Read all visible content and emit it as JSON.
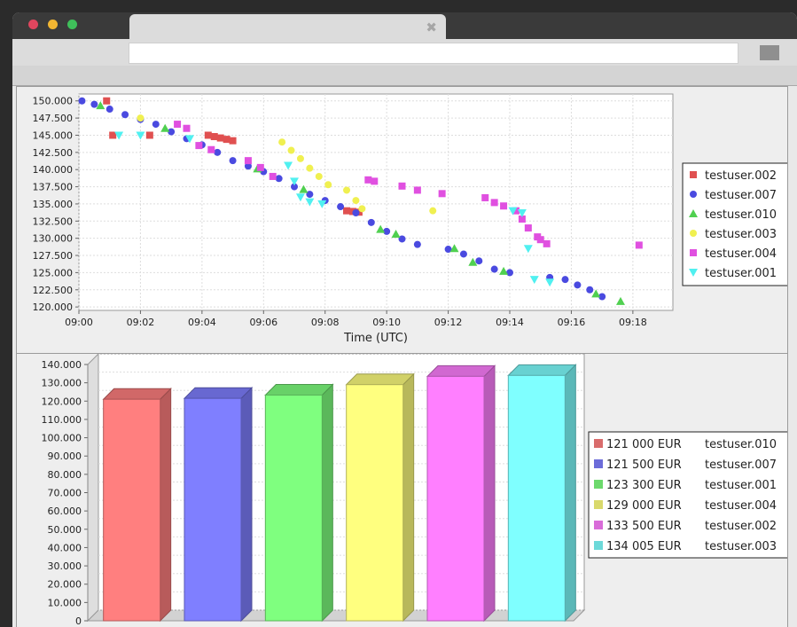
{
  "browser": {
    "tab_close_icon": "✖"
  },
  "chart_data": [
    {
      "type": "scatter",
      "title": "",
      "xlabel": "Time (UTC)",
      "ylabel": "",
      "xlim": [
        0,
        19.3
      ],
      "ylim": [
        119500,
        151000
      ],
      "x_ticks": [
        0,
        2,
        4,
        6,
        8,
        10,
        12,
        14,
        16,
        18
      ],
      "x_tick_labels": [
        "09:00",
        "09:02",
        "09:04",
        "09:06",
        "09:08",
        "09:10",
        "09:12",
        "09:14",
        "09:16",
        "09:18"
      ],
      "y_ticks": [
        120000,
        122500,
        125000,
        127500,
        130000,
        132500,
        135000,
        137500,
        140000,
        142500,
        145000,
        147500,
        150000
      ],
      "y_tick_labels": [
        "120.000",
        "122.500",
        "125.000",
        "127.500",
        "130.000",
        "132.500",
        "135.000",
        "137.500",
        "140.000",
        "142.500",
        "145.000",
        "147.500",
        "150.000"
      ],
      "grid": true,
      "legend_position": "right",
      "series": [
        {
          "name": "testuser.002",
          "color": "#e05050",
          "marker": "square",
          "points": [
            [
              0.9,
              150000
            ],
            [
              1.1,
              145000
            ],
            [
              2.3,
              145000
            ],
            [
              4.2,
              145000
            ],
            [
              4.4,
              144800
            ],
            [
              4.6,
              144600
            ],
            [
              4.8,
              144400
            ],
            [
              5.0,
              144200
            ],
            [
              9.1,
              133800
            ],
            [
              8.7,
              134000
            ],
            [
              8.9,
              133900
            ]
          ]
        },
        {
          "name": "testuser.007",
          "color": "#4a4ae0",
          "marker": "circle",
          "points": [
            [
              0.1,
              150000
            ],
            [
              0.5,
              149500
            ],
            [
              1.0,
              148800
            ],
            [
              1.5,
              148000
            ],
            [
              2.0,
              147300
            ],
            [
              2.5,
              146600
            ],
            [
              3.0,
              145500
            ],
            [
              3.5,
              144500
            ],
            [
              4.0,
              143600
            ],
            [
              4.5,
              142500
            ],
            [
              5.0,
              141300
            ],
            [
              5.5,
              140500
            ],
            [
              6.0,
              139700
            ],
            [
              6.5,
              138700
            ],
            [
              7.0,
              137500
            ],
            [
              7.5,
              136400
            ],
            [
              8.0,
              135500
            ],
            [
              8.5,
              134600
            ],
            [
              9.0,
              133700
            ],
            [
              9.5,
              132300
            ],
            [
              10.0,
              131000
            ],
            [
              10.5,
              129900
            ],
            [
              11.0,
              129100
            ],
            [
              12.0,
              128400
            ],
            [
              12.5,
              127700
            ],
            [
              13.0,
              126700
            ],
            [
              13.5,
              125500
            ],
            [
              14.0,
              125000
            ],
            [
              15.3,
              124300
            ],
            [
              15.8,
              124000
            ],
            [
              16.2,
              123200
            ],
            [
              16.6,
              122500
            ],
            [
              17.0,
              121500
            ]
          ]
        },
        {
          "name": "testuser.010",
          "color": "#50d050",
          "marker": "triangle-up",
          "points": [
            [
              0.7,
              149300
            ],
            [
              2.8,
              146000
            ],
            [
              5.8,
              140100
            ],
            [
              7.3,
              137100
            ],
            [
              9.8,
              131300
            ],
            [
              10.3,
              130600
            ],
            [
              12.2,
              128500
            ],
            [
              12.8,
              126500
            ],
            [
              13.8,
              125200
            ],
            [
              16.8,
              121900
            ],
            [
              17.6,
              120800
            ]
          ]
        },
        {
          "name": "testuser.003",
          "color": "#f0f050",
          "marker": "circle",
          "points": [
            [
              2.0,
              147500
            ],
            [
              6.6,
              144000
            ],
            [
              6.9,
              142800
            ],
            [
              7.2,
              141600
            ],
            [
              7.5,
              140200
            ],
            [
              7.8,
              139000
            ],
            [
              8.1,
              137800
            ],
            [
              8.7,
              137000
            ],
            [
              9.0,
              135500
            ],
            [
              9.2,
              134300
            ],
            [
              11.5,
              134000
            ]
          ]
        },
        {
          "name": "testuser.004",
          "color": "#e050e0",
          "marker": "square",
          "points": [
            [
              3.2,
              146600
            ],
            [
              3.5,
              146000
            ],
            [
              3.9,
              143500
            ],
            [
              4.3,
              142900
            ],
            [
              5.5,
              141300
            ],
            [
              5.9,
              140300
            ],
            [
              6.3,
              139000
            ],
            [
              9.4,
              138500
            ],
            [
              9.6,
              138300
            ],
            [
              10.5,
              137600
            ],
            [
              11.0,
              137000
            ],
            [
              11.8,
              136500
            ],
            [
              13.2,
              135900
            ],
            [
              13.5,
              135200
            ],
            [
              13.8,
              134700
            ],
            [
              14.2,
              134000
            ],
            [
              14.4,
              132800
            ],
            [
              14.6,
              131500
            ],
            [
              14.9,
              130200
            ],
            [
              15.0,
              129800
            ],
            [
              15.2,
              129200
            ],
            [
              18.2,
              129000
            ]
          ]
        },
        {
          "name": "testuser.001",
          "color": "#50f0f0",
          "marker": "triangle-down",
          "points": [
            [
              1.3,
              145000
            ],
            [
              2.0,
              145000
            ],
            [
              3.6,
              144500
            ],
            [
              6.8,
              140600
            ],
            [
              7.0,
              138300
            ],
            [
              7.2,
              136000
            ],
            [
              7.5,
              135300
            ],
            [
              7.9,
              135000
            ],
            [
              14.1,
              134000
            ],
            [
              14.4,
              133700
            ],
            [
              14.6,
              128500
            ],
            [
              14.8,
              124000
            ],
            [
              15.3,
              123600
            ]
          ]
        }
      ]
    },
    {
      "type": "bar",
      "title": "",
      "xlabel": "",
      "ylabel": "",
      "ylim": [
        0,
        140000
      ],
      "y_ticks": [
        0,
        10000,
        20000,
        30000,
        40000,
        50000,
        60000,
        70000,
        80000,
        90000,
        100000,
        110000,
        120000,
        130000,
        140000
      ],
      "y_tick_labels": [
        "0",
        "10.000",
        "20.000",
        "30.000",
        "40.000",
        "50.000",
        "60.000",
        "70.000",
        "80.000",
        "90.000",
        "100.000",
        "110.000",
        "120.000",
        "130.000",
        "140.000"
      ],
      "grid": true,
      "legend_position": "right",
      "bars": [
        {
          "amount_label": "121 000 EUR",
          "user": "testuser.010",
          "value": 121000,
          "color": "#ff7f7f"
        },
        {
          "amount_label": "121 500 EUR",
          "user": "testuser.007",
          "value": 121500,
          "color": "#7f7fff"
        },
        {
          "amount_label": "123 300 EUR",
          "user": "testuser.001",
          "value": 123300,
          "color": "#7fff7f"
        },
        {
          "amount_label": "129 000 EUR",
          "user": "testuser.004",
          "value": 129000,
          "color": "#ffff7f"
        },
        {
          "amount_label": "133 500 EUR",
          "user": "testuser.002",
          "value": 133500,
          "color": "#ff7fff"
        },
        {
          "amount_label": "134 005 EUR",
          "user": "testuser.003",
          "value": 134005,
          "color": "#7fffff"
        }
      ]
    }
  ]
}
